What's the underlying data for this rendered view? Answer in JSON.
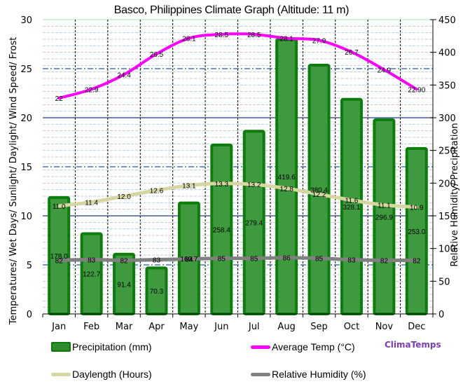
{
  "title": "Basco, Philippines Climate Graph (Altitude: 11 m)",
  "brand": "ClimaTemps",
  "legend": {
    "precipitation": "Precipitation (mm)",
    "avg_temp": "Average Temp (°C)",
    "daylength": "Daylength (Hours)",
    "humidity": "Relative Humidity (%)"
  },
  "colors": {
    "precip_fill": "#3f9a3f",
    "precip_border": "#0b7d0b",
    "avg_temp": "#ff00ff",
    "daylength": "#d6d6a0",
    "humidity": "#808080",
    "brand": "#7b3db5"
  },
  "chart_data": {
    "type": "bar+line",
    "title": "Basco, Philippines Climate Graph (Altitude: 11 m)",
    "categories": [
      "Jan",
      "Feb",
      "Mar",
      "Apr",
      "May",
      "Jun",
      "Jul",
      "Aug",
      "Sep",
      "Oct",
      "Nov",
      "Dec"
    ],
    "ylabel_left": "Temperatures/ Wet Days/ Sunlight/ Daylight/ Wind Speed/ Frost",
    "ylabel_right": "Relative Humidity/ Precipitation",
    "ylim_left": [
      0,
      30
    ],
    "ylim_right": [
      0,
      450
    ],
    "yticks_left": [
      0,
      5,
      10,
      15,
      20,
      25,
      30
    ],
    "yticks_right": [
      0,
      50,
      100,
      150,
      200,
      250,
      300,
      350,
      400,
      450
    ],
    "series": [
      {
        "name": "Precipitation (mm)",
        "type": "bar",
        "axis": "right",
        "values": [
          178.0,
          122.7,
          91.4,
          70.3,
          169.7,
          258.4,
          279.4,
          419.6,
          380.4,
          328.1,
          296.9,
          253.0
        ]
      },
      {
        "name": "Average Temp (°C)",
        "type": "line",
        "axis": "left",
        "values": [
          22,
          22.9,
          24.4,
          26.5,
          28.1,
          28.5,
          28.5,
          28.1,
          27.9,
          26.7,
          24.9,
          22.9
        ],
        "labels": [
          "22",
          "22.9",
          "24.4",
          "26.5",
          "28.1",
          "28.5",
          "28.5",
          "28.1",
          "27.9",
          "26.7",
          "24.9",
          "22.90"
        ]
      },
      {
        "name": "Daylength (Hours)",
        "type": "line",
        "axis": "left",
        "values": [
          11.0,
          11.4,
          12.0,
          12.6,
          13.1,
          13.3,
          13.2,
          12.8,
          12.2,
          11.6,
          11.1,
          10.9
        ],
        "labels": [
          "11.0",
          "11.4",
          "12.0",
          "12.6",
          "13.1",
          "13.3",
          "13.2",
          "12.8",
          "12.2",
          "11.6",
          "11.1",
          "10.9"
        ]
      },
      {
        "name": "Relative Humidity (%)",
        "type": "line",
        "axis": "right",
        "values": [
          82,
          83,
          82,
          83,
          84,
          85,
          85,
          86,
          85,
          83,
          82,
          82
        ],
        "labels": [
          "82",
          "83",
          "82",
          "83",
          "84",
          "85",
          "85",
          "86",
          "85",
          "83",
          "82",
          "82"
        ]
      }
    ],
    "legend_position": "bottom",
    "grid": true
  }
}
